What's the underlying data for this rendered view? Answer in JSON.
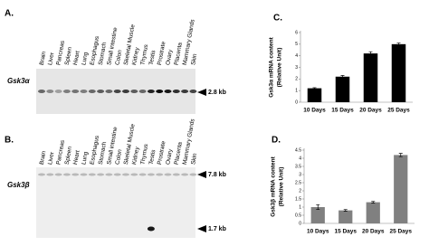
{
  "panels": [
    {
      "label": "A.",
      "gene": "Gsk3α",
      "lanes": [
        "Brain",
        "Liver",
        "Pancreas",
        "Spleen",
        "Heart",
        "Lung",
        "Esophagus",
        "Stomach",
        "Small intestine",
        "Colon",
        "Skeletal Muscle",
        "Kidney",
        "Thymus",
        "Testis",
        "Prostrate",
        "Ovary",
        "Placenta",
        "Mammary Glands",
        "Skin"
      ],
      "markers": [
        "2.8 kb"
      ]
    },
    {
      "label": "B.",
      "gene": "Gsk3β",
      "lanes": [
        "Brain",
        "Liver",
        "Pancreas",
        "Spleen",
        "Heart",
        "Lung",
        "Esophagus",
        "Stomach",
        "Small intestine",
        "Colon",
        "Skeletal Muscle",
        "Kidney",
        "Thymus",
        "Testis",
        "Prostrate",
        "Ovary",
        "Placenta",
        "Mammary Glands",
        "Skin"
      ],
      "markers": [
        "7.8 kb",
        "1.7 kb"
      ]
    }
  ],
  "chart_data": [
    {
      "type": "bar",
      "panel_label": "C.",
      "ylabel": [
        "Gsk3α mRNA content",
        "(Relative Unit)"
      ],
      "categories": [
        "10 Days",
        "15 Days",
        "20 Days",
        "25 Days"
      ],
      "values": [
        1.2,
        2.2,
        4.2,
        5.0
      ],
      "errors": [
        0.05,
        0.1,
        0.15,
        0.1
      ],
      "color": "#000000",
      "ylim": [
        0,
        6
      ],
      "yticks": [
        0,
        1,
        2,
        3,
        4,
        5,
        6
      ]
    },
    {
      "type": "bar",
      "panel_label": "D.",
      "ylabel": [
        "Gsk3β mRNA content",
        "(Relative Unit)"
      ],
      "categories": [
        "10 Days",
        "15 Days",
        "20 Days",
        "25 Days"
      ],
      "values": [
        1.0,
        0.8,
        1.3,
        4.2
      ],
      "errors": [
        0.15,
        0.05,
        0.05,
        0.1
      ],
      "color": "#808080",
      "ylim": [
        0,
        4.5
      ],
      "yticks": [
        0,
        0.5,
        1,
        1.5,
        2,
        2.5,
        3,
        3.5,
        4,
        4.5
      ]
    }
  ]
}
